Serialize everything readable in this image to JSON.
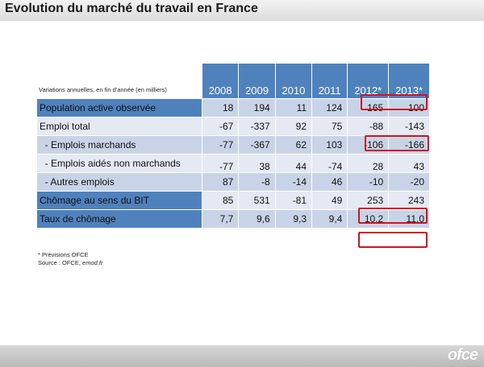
{
  "title": "Evolution du marché du travail en France",
  "logo": "ofce",
  "table": {
    "caption": "Variations annuelles, en fin d'année (en milliers)",
    "years": [
      "2008",
      "2009",
      "2010",
      "2011",
      "2012*",
      "2013*"
    ],
    "rows": [
      {
        "label": "Population active observée",
        "values": [
          "18",
          "194",
          "11",
          "124",
          "165",
          "100"
        ]
      },
      {
        "label": "Emploi total",
        "values": [
          "-67",
          "-337",
          "92",
          "75",
          "-88",
          "-143"
        ]
      },
      {
        "label": "  - Emplois marchands",
        "values": [
          "-77",
          "-367",
          "62",
          "103",
          "-106",
          "-166"
        ]
      },
      {
        "label": "  - Emplois aidés non marchands",
        "values": [
          "-77",
          "38",
          "44",
          "-74",
          "28",
          "43"
        ]
      },
      {
        "label": "  - Autres emplois",
        "values": [
          "87",
          "-8",
          "-14",
          "46",
          "-10",
          "-20"
        ]
      },
      {
        "label": "Chômage au sens du BIT",
        "values": [
          "85",
          "531",
          "-81",
          "49",
          "253",
          "243"
        ]
      },
      {
        "label": "Taux de chômage",
        "values": [
          "7,7",
          "9,6",
          "9,3",
          "9,4",
          "10,2",
          "11,0"
        ]
      }
    ]
  },
  "notes": {
    "line1": "* Prévisions OFCE",
    "line2_prefix": "Source : OFCE, ",
    "line2_source": "emod.fr"
  },
  "colors": {
    "header": "#4f81bd",
    "row_dark": "#c9d3e7",
    "row_light": "#e4e9f4",
    "highlight_box": "#d0141c"
  }
}
